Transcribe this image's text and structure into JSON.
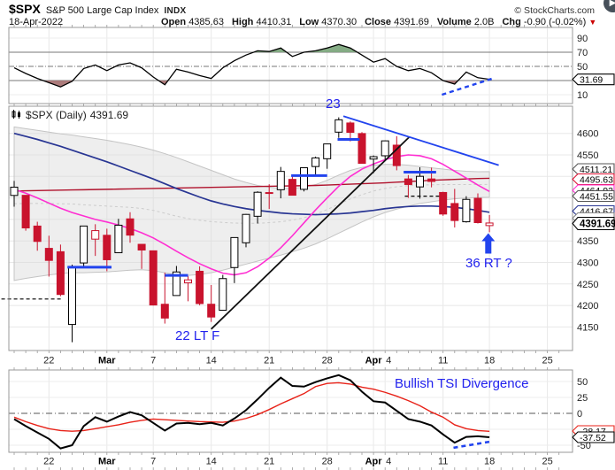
{
  "header": {
    "symbol": "$SPX",
    "name": "S&P 500 Large Cap Index",
    "exchange": "INDX",
    "copyright": "© StockCharts.com",
    "date": "18-Apr-2022",
    "fields": [
      {
        "label": "Open",
        "value": "4385.63"
      },
      {
        "label": "High",
        "value": "4410.31"
      },
      {
        "label": "Low",
        "value": "4370.30"
      },
      {
        "label": "Close",
        "value": "4391.69"
      },
      {
        "label": "Volume",
        "value": "2.0B"
      },
      {
        "label": "Chg",
        "value": "-0.90 (-0.02%)"
      }
    ],
    "change_direction": "down"
  },
  "legend": {
    "title": "$SPX (Daily)",
    "value": "4391.69"
  },
  "annotations": {
    "peak_count": "23",
    "low_count": "22 LT F",
    "retrace": "36 RT ?",
    "tsi_note": "Bullish TSI Divergence"
  },
  "colors": {
    "candle_up": "#000000",
    "candle_down": "#c9132d",
    "ma_fast_magenta": "#ff2ed2",
    "ma_mid_navy": "#283593",
    "ma_long_red": "#b0122c",
    "band_gray": "#d9d9d9",
    "band_edge": "#c4c4c4",
    "annotation_blue": "#2222ee",
    "segment_blue": "#2244ee",
    "oscillator_line": "#000000",
    "signal_red": "#e82218",
    "fill_overbought_green": "#7ea87e",
    "fill_oversold_red": "#a87474",
    "grid": "#e8e8e8",
    "panel_border": "#999999",
    "axis_text": "#222222",
    "chg_triangle_red": "#cc0000"
  },
  "x_axis_labels": [
    {
      "pos": 3,
      "label": "22",
      "bold": false
    },
    {
      "pos": 8,
      "label": "Mar",
      "bold": true
    },
    {
      "pos": 12,
      "label": "7",
      "bold": false
    },
    {
      "pos": 17,
      "label": "14",
      "bold": false
    },
    {
      "pos": 22,
      "label": "21",
      "bold": false
    },
    {
      "pos": 27,
      "label": "28",
      "bold": false
    },
    {
      "pos": 31,
      "label": "Apr",
      "bold": true
    },
    {
      "pos": 32.3,
      "label": "4",
      "bold": false
    },
    {
      "pos": 37,
      "label": "11",
      "bold": false
    },
    {
      "pos": 41,
      "label": "18",
      "bold": false
    },
    {
      "pos": 46,
      "label": "25",
      "bold": false
    }
  ],
  "chart_data": [
    {
      "panel": "momentum-oscillator",
      "type": "line",
      "yticks": [
        90,
        70,
        50,
        10
      ],
      "overbought": 70,
      "midline": 50,
      "oversold": 30,
      "last_value": "31.69",
      "values": [
        48,
        40,
        33,
        27,
        21,
        29,
        47,
        52,
        44,
        52,
        55,
        48,
        35,
        24,
        46,
        42,
        37,
        33,
        48,
        58,
        66,
        72,
        71,
        76,
        64,
        70,
        72,
        76,
        81,
        76,
        66,
        56,
        61,
        50,
        44,
        47,
        41,
        30,
        25,
        42,
        34,
        31.7
      ],
      "divergence_line": {
        "x": [
          36.9,
          41.3
        ],
        "y": [
          10,
          33
        ]
      }
    },
    {
      "panel": "price",
      "type": "candlestick",
      "yticks": [
        4600,
        4550,
        4500,
        4450,
        4400,
        4350,
        4300,
        4250,
        4200,
        4150
      ],
      "visible_plain_yticks": [
        4600,
        4550,
        4350,
        4300,
        4250,
        4200,
        4150
      ],
      "dates": [
        "16 Feb",
        "17 Feb",
        "18 Feb",
        "22 Feb",
        "23 Feb",
        "24 Feb",
        "25 Feb",
        "28 Feb",
        "1 Mar",
        "2 Mar",
        "3 Mar",
        "4 Mar",
        "7 Mar",
        "8 Mar",
        "9 Mar",
        "10 Mar",
        "11 Mar",
        "14 Mar",
        "15 Mar",
        "16 Mar",
        "17 Mar",
        "18 Mar",
        "21 Mar",
        "22 Mar",
        "23 Mar",
        "24 Mar",
        "25 Mar",
        "28 Mar",
        "29 Mar",
        "30 Mar",
        "31 Mar",
        "1 Apr",
        "4 Apr",
        "5 Apr",
        "6 Apr",
        "7 Apr",
        "8 Apr",
        "11 Apr",
        "12 Apr",
        "13 Apr",
        "14 Apr",
        "18 Apr"
      ],
      "ohlc": [
        [
          4455.75,
          4489.55,
          4429.66,
          4475.01
        ],
        [
          4456.06,
          4456.06,
          4373.81,
          4380.26
        ],
        [
          4384.57,
          4394.6,
          4327.22,
          4348.87
        ],
        [
          4332.74,
          4362.12,
          4267.11,
          4304.76
        ],
        [
          4324.93,
          4341.51,
          4221.51,
          4225.5
        ],
        [
          4155.77,
          4294.73,
          4114.65,
          4288.7
        ],
        [
          4298.84,
          4385.34,
          4286.83,
          4384.65
        ],
        [
          4354.17,
          4388.84,
          4315.12,
          4373.94
        ],
        [
          4363.14,
          4378.45,
          4279.54,
          4306.26
        ],
        [
          4322.56,
          4401.48,
          4322.56,
          4386.54
        ],
        [
          4401.32,
          4416.78,
          4345.72,
          4363.49
        ],
        [
          4342.12,
          4342.12,
          4284.98,
          4328.87
        ],
        [
          4327.01,
          4327.01,
          4199.85,
          4201.09
        ],
        [
          4202.75,
          4276.3,
          4157.87,
          4170.7
        ],
        [
          4223.1,
          4291.8,
          4223.1,
          4277.88
        ],
        [
          4252.55,
          4268.28,
          4209.8,
          4259.52
        ],
        [
          4279.5,
          4291.01,
          4200.49,
          4204.31
        ],
        [
          4202.82,
          4247.57,
          4161.72,
          4173.11
        ],
        [
          4188.82,
          4271.09,
          4187.9,
          4262.45
        ],
        [
          4288.14,
          4358.1,
          4251.99,
          4357.86
        ],
        [
          4345.72,
          4412.67,
          4335.28,
          4411.67
        ],
        [
          4407.34,
          4465.4,
          4390.57,
          4463.12
        ],
        [
          4462.4,
          4481.75,
          4424.3,
          4461.18
        ],
        [
          4469.04,
          4522.0,
          4449.03,
          4511.61
        ],
        [
          4493.1,
          4501.07,
          4455.81,
          4456.24
        ],
        [
          4469.99,
          4520.62,
          4465.17,
          4520.16
        ],
        [
          4522.91,
          4546.03,
          4501.07,
          4543.06
        ],
        [
          4541.09,
          4575.65,
          4517.69,
          4575.52
        ],
        [
          4602.86,
          4637.3,
          4589.66,
          4631.6
        ],
        [
          4624.2,
          4627.77,
          4581.32,
          4602.45
        ],
        [
          4599.62,
          4603.07,
          4530.41,
          4530.41
        ],
        [
          4540.32,
          4548.7,
          4507.57,
          4545.86
        ],
        [
          4547.97,
          4583.5,
          4539.21,
          4582.64
        ],
        [
          4572.66,
          4593.45,
          4514.17,
          4525.12
        ],
        [
          4494.17,
          4503.07,
          4450.04,
          4481.15
        ],
        [
          4475.59,
          4521.16,
          4448.38,
          4500.21
        ],
        [
          4494.13,
          4520.41,
          4474.6,
          4488.28
        ],
        [
          4462.64,
          4464.3,
          4408.38,
          4412.53
        ],
        [
          4437.0,
          4471.03,
          4381.34,
          4397.45
        ],
        [
          4394.55,
          4453.92,
          4392.6,
          4446.59
        ],
        [
          4449.12,
          4460.46,
          4390.63,
          4392.59
        ],
        [
          4385.63,
          4410.31,
          4370.3,
          4391.69
        ]
      ],
      "overlays": {
        "band_upper": [
          4615,
          4611,
          4607,
          4603,
          4599,
          4596,
          4592,
          4588,
          4584,
          4579,
          4574,
          4568,
          4561,
          4553,
          4544,
          4534,
          4524,
          4514,
          4504,
          4494,
          4486,
          4479,
          4475,
          4472,
          4472,
          4475,
          4481,
          4491,
          4503,
          4514,
          4521,
          4526,
          4528,
          4528,
          4526,
          4523,
          4520,
          4517,
          4514,
          4512,
          4511,
          4511.21
        ],
        "band_lower": [
          4258,
          4263,
          4267,
          4271,
          4274,
          4276,
          4276,
          4277,
          4278,
          4280,
          4282,
          4283,
          4281,
          4276,
          4271,
          4270,
          4272,
          4276,
          4282,
          4289,
          4296,
          4303,
          4310,
          4317,
          4325,
          4333,
          4343,
          4355,
          4368,
          4381,
          4394,
          4406,
          4416,
          4424,
          4431,
          4437,
          4441,
          4445,
          4448,
          4450,
          4451,
          4451.55
        ],
        "ma_mid_navy": [
          4600,
          4593,
          4586,
          4578,
          4570,
          4561,
          4552,
          4543,
          4534,
          4524,
          4514,
          4504,
          4494,
          4483,
          4472,
          4462,
          4452,
          4443,
          4436,
          4430,
          4425,
          4421,
          4418,
          4415,
          4413,
          4412,
          4411,
          4412,
          4413,
          4415,
          4418,
          4421,
          4425,
          4428,
          4430,
          4431,
          4431,
          4430,
          4428,
          4425,
          4421,
          4416.67
        ],
        "ma_fast_magenta": [
          4470,
          4461,
          4450,
          4438,
          4426,
          4416,
          4408,
          4400,
          4394,
          4387,
          4379,
          4369,
          4357,
          4342,
          4326,
          4311,
          4297,
          4285,
          4275,
          4271,
          4276,
          4290,
          4310,
          4334,
          4362,
          4392,
          4422,
          4450,
          4477,
          4500,
          4517,
          4529,
          4539,
          4546,
          4550,
          4548,
          4541,
          4528,
          4512,
          4496,
          4480,
          4464.92
        ],
        "ma_long_red": [
          4466,
          4466.5,
          4467,
          4467.5,
          4468,
          4468.5,
          4469,
          4469.5,
          4470,
          4470.5,
          4471,
          4471.5,
          4472,
          4472.5,
          4473,
          4473.5,
          4474,
          4474.5,
          4475,
          4475.5,
          4476,
          4476.5,
          4477,
          4477.5,
          4478,
          4478.5,
          4479,
          4480,
          4481,
          4482,
          4483,
          4484,
          4485,
          4486.5,
          4488,
          4489.5,
          4491,
          4492,
          4493,
          4494,
          4495,
          4495.63
        ]
      },
      "trendlines": [
        {
          "name": "rising-black",
          "x": [
            17.0,
            34.1
          ],
          "y": [
            4145,
            4592
          ],
          "style": "solid-black"
        },
        {
          "name": "falling-blue",
          "x": [
            28.4,
            41.8
          ],
          "y": [
            4640,
            4526
          ],
          "style": "solid-blue"
        }
      ],
      "support_segments": [
        {
          "x": [
            4.6,
            8.4
          ],
          "price": 4289
        },
        {
          "x": [
            13.0,
            15.0
          ],
          "price": 4270
        },
        {
          "x": [
            23.9,
            27.0
          ],
          "price": 4502
        },
        {
          "x": [
            27.9,
            29.8
          ],
          "price": 4586
        },
        {
          "x": [
            33.6,
            36.4
          ],
          "price": 4510
        }
      ],
      "dashed_segments": [
        {
          "x": [
            -1.1,
            4.1
          ],
          "price": 4215
        },
        {
          "x": [
            33.7,
            36.8
          ],
          "price": 4454
        }
      ],
      "callouts": [
        {
          "value": "4511.21",
          "color": "#555555",
          "cy": 191,
          "bold": false
        },
        {
          "value": "4495.63",
          "color": "#dd1133",
          "cy": 202.5,
          "bold": false
        },
        {
          "value": "4464.92",
          "color": "#ff2ed2",
          "cy": 215,
          "bold": false
        },
        {
          "value": "4451.55",
          "color": "#555555",
          "cy": 221.5,
          "bold": false
        },
        {
          "value": "4416.67",
          "color": "#283593",
          "cy": 238.5,
          "bold": false
        },
        {
          "value": "",
          "color": "#888888",
          "cy": 246.5,
          "bold": false
        },
        {
          "value": "4391.69",
          "color": "#000000",
          "cy": 252.5,
          "bold": true
        }
      ],
      "up_arrow": {
        "x": 40.9,
        "price_tip": 4368
      }
    },
    {
      "panel": "tsi",
      "type": "line",
      "yticks": [
        50,
        25,
        0,
        -50
      ],
      "series": [
        {
          "name": "tsi-black",
          "values": [
            -9,
            -20,
            -30,
            -40,
            -55,
            -50,
            -20,
            -6,
            -13,
            -5,
            2,
            -3,
            -15,
            -27,
            -16,
            -15,
            -17,
            -15,
            -19,
            -8,
            5,
            22,
            40,
            56,
            43,
            42,
            49,
            55,
            60,
            52,
            34,
            19,
            17,
            4,
            -9,
            -13,
            -19,
            -33,
            -46,
            -37,
            -36,
            -37.5
          ]
        },
        {
          "name": "signal-red",
          "values": [
            -6,
            -13,
            -19,
            -24,
            -27,
            -28,
            -27,
            -24,
            -21,
            -18,
            -14,
            -11,
            -9,
            -10,
            -11,
            -12,
            -13,
            -13.5,
            -14,
            -12,
            -8,
            -2,
            6,
            15,
            23,
            31,
            42,
            47,
            48,
            46,
            41,
            38,
            33,
            27,
            20,
            12,
            2,
            -6,
            -18,
            -24,
            -27,
            -28.2
          ]
        }
      ],
      "callouts": [
        {
          "value": "-28.17",
          "color": "#e82218",
          "cy": 487
        },
        {
          "value": "-37.52",
          "color": "#000000",
          "cy": 494
        }
      ],
      "divergence_line": {
        "x": [
          37.9,
          41.2
        ],
        "y": [
          -54,
          -44
        ]
      }
    }
  ]
}
